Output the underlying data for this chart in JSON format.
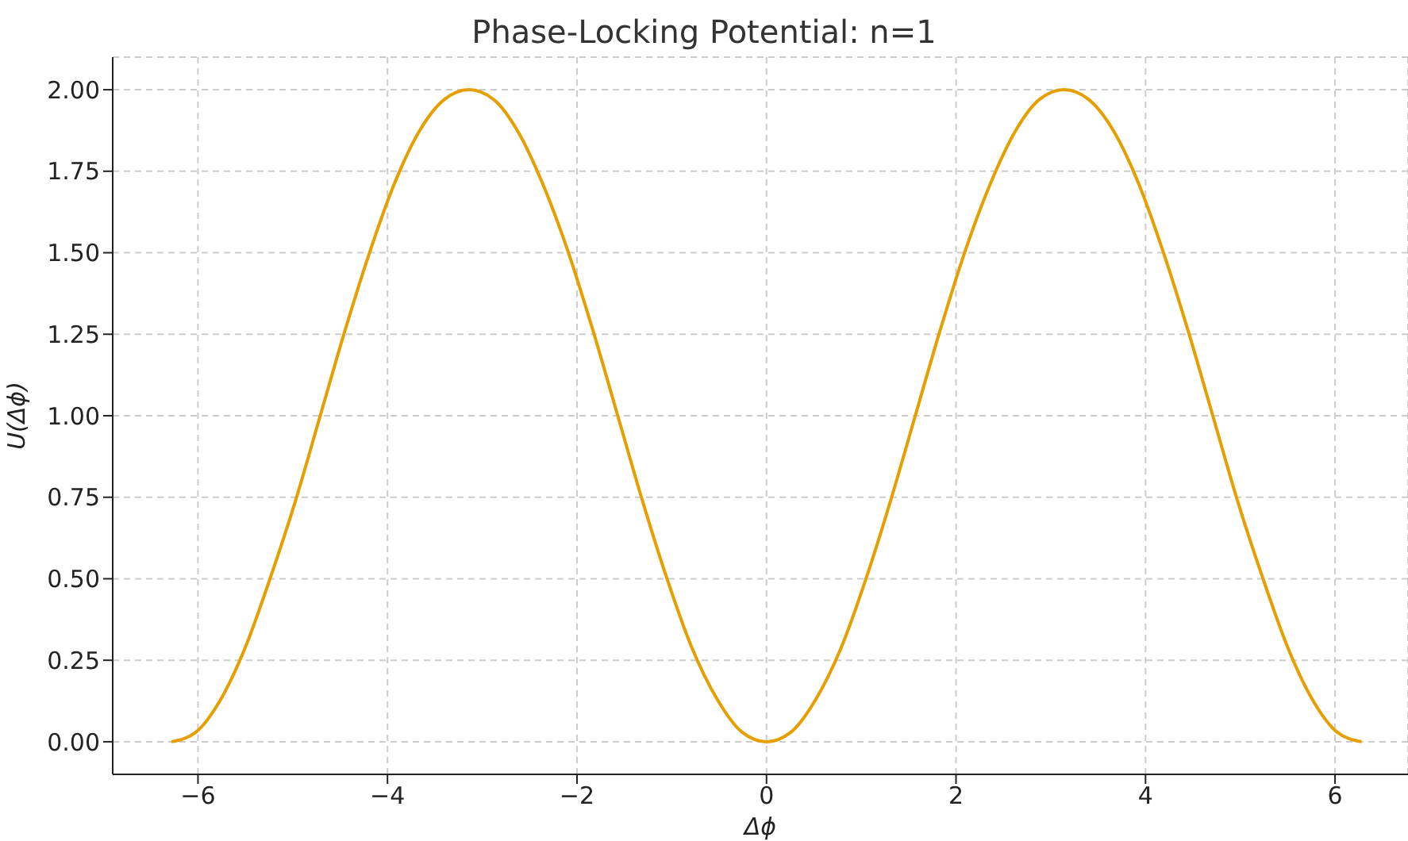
{
  "chart_data": {
    "type": "line",
    "title": "Phase-Locking Potential: n=1",
    "xlabel": "Δϕ",
    "ylabel": "U(Δϕ)",
    "x": [
      -6.28,
      -6.02,
      -5.76,
      -5.5,
      -5.24,
      -4.97,
      -4.71,
      -4.45,
      -4.19,
      -3.93,
      -3.67,
      -3.4,
      -3.14,
      -2.88,
      -2.62,
      -2.36,
      -2.09,
      -1.83,
      -1.57,
      -1.31,
      -1.05,
      -0.79,
      -0.52,
      -0.26,
      0,
      0.26,
      0.52,
      0.79,
      1.05,
      1.31,
      1.57,
      1.83,
      2.09,
      2.36,
      2.62,
      2.88,
      3.14,
      3.4,
      3.67,
      3.93,
      4.19,
      4.45,
      4.71,
      4.97,
      5.24,
      5.5,
      5.76,
      6.02,
      6.28
    ],
    "series": [
      {
        "color": "#e69f00",
        "values": [
          0,
          0.03,
          0.13,
          0.29,
          0.5,
          0.74,
          1,
          1.26,
          1.5,
          1.71,
          1.87,
          1.97,
          2,
          1.97,
          1.87,
          1.71,
          1.5,
          1.26,
          1,
          0.74,
          0.5,
          0.29,
          0.13,
          0.03,
          0,
          0.03,
          0.13,
          0.29,
          0.5,
          0.74,
          1,
          1.26,
          1.5,
          1.71,
          1.87,
          1.97,
          2,
          1.97,
          1.87,
          1.71,
          1.5,
          1.26,
          1,
          0.74,
          0.5,
          0.29,
          0.13,
          0.03,
          0
        ]
      }
    ],
    "xlim": [
      -6.9,
      6.77
    ],
    "ylim": [
      -0.1,
      2.1
    ],
    "xticks": [
      {
        "value": -6,
        "label": "−6"
      },
      {
        "value": -4,
        "label": "−4"
      },
      {
        "value": -2,
        "label": "−2"
      },
      0,
      2,
      4,
      6
    ],
    "yticks": [
      {
        "value": 0,
        "label": "0.00"
      },
      {
        "value": 0.25,
        "label": "0.25"
      },
      {
        "value": 0.5,
        "label": "0.50"
      },
      {
        "value": 0.75,
        "label": "0.75"
      },
      {
        "value": 1,
        "label": "1.00"
      },
      {
        "value": 1.25,
        "label": "1.25"
      },
      {
        "value": 1.5,
        "label": "1.50"
      },
      {
        "value": 1.75,
        "label": "1.75"
      },
      {
        "value": 2,
        "label": "2.00"
      }
    ],
    "grid": true,
    "marker": "none",
    "line_style": "solid",
    "legend": false
  }
}
